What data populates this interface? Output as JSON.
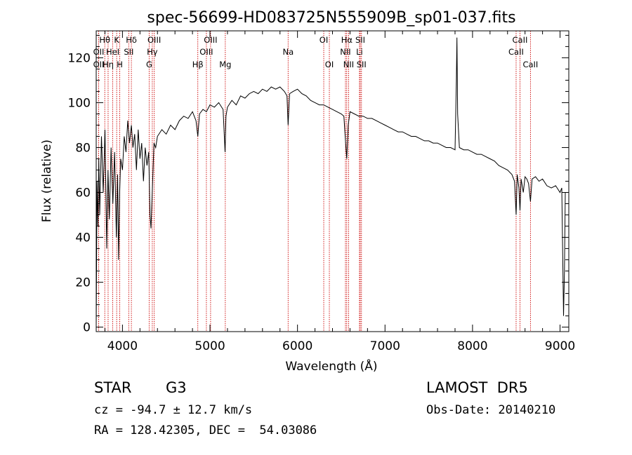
{
  "title": "spec-56699-HD083725N555909B_sp01-037.fits",
  "footer": {
    "object_class": "STAR",
    "subclass": "G3",
    "survey": "LAMOST  DR5",
    "cz": "cz = -94.7 ± 12.7 km/s",
    "obs_date": "Obs-Date: 20140210",
    "coords": "RA = 128.42305, DEC =  54.03086"
  },
  "chart_data": {
    "type": "line",
    "title": "spec-56699-HD083725N555909B_sp01-037.fits",
    "xlabel": "Wavelength (Å)",
    "ylabel": "Flux (relative)",
    "xlim": [
      3700,
      9100
    ],
    "ylim": [
      -2,
      132
    ],
    "xticks": [
      4000,
      5000,
      6000,
      7000,
      8000,
      9000
    ],
    "yticks": [
      0,
      20,
      40,
      60,
      80,
      100,
      120
    ],
    "line_color": "#000000",
    "marker_color": "#cc0000",
    "spectrum": {
      "x": [
        3700,
        3710,
        3720,
        3730,
        3740,
        3760,
        3780,
        3800,
        3820,
        3835,
        3850,
        3870,
        3890,
        3910,
        3930,
        3945,
        3955,
        3968,
        3980,
        4000,
        4020,
        4040,
        4060,
        4080,
        4102,
        4120,
        4140,
        4160,
        4180,
        4200,
        4220,
        4240,
        4260,
        4280,
        4300,
        4315,
        4326,
        4340,
        4360,
        4380,
        4400,
        4450,
        4500,
        4550,
        4600,
        4650,
        4700,
        4750,
        4800,
        4840,
        4861,
        4880,
        4920,
        4960,
        5000,
        5050,
        5100,
        5150,
        5172,
        5183,
        5200,
        5250,
        5300,
        5350,
        5400,
        5450,
        5500,
        5550,
        5600,
        5650,
        5700,
        5750,
        5800,
        5850,
        5880,
        5893,
        5910,
        5950,
        6000,
        6050,
        6100,
        6150,
        6200,
        6250,
        6300,
        6350,
        6400,
        6450,
        6500,
        6530,
        6550,
        6563,
        6580,
        6600,
        6650,
        6700,
        6750,
        6800,
        6850,
        6900,
        6950,
        7000,
        7050,
        7100,
        7150,
        7200,
        7250,
        7300,
        7350,
        7400,
        7450,
        7500,
        7550,
        7600,
        7650,
        7700,
        7750,
        7800,
        7815,
        7822,
        7830,
        7850,
        7900,
        7950,
        8000,
        8050,
        8100,
        8150,
        8200,
        8250,
        8300,
        8350,
        8400,
        8450,
        8480,
        8498,
        8510,
        8530,
        8542,
        8555,
        8580,
        8600,
        8620,
        8640,
        8662,
        8680,
        8720,
        8760,
        8800,
        8850,
        8900,
        8950,
        9000,
        9020,
        9040,
        9050,
        9060
      ],
      "y": [
        0,
        65,
        45,
        75,
        50,
        85,
        60,
        88,
        35,
        70,
        48,
        80,
        55,
        78,
        40,
        68,
        30,
        60,
        75,
        70,
        85,
        78,
        92,
        82,
        90,
        80,
        86,
        70,
        88,
        75,
        82,
        65,
        80,
        72,
        78,
        50,
        44,
        60,
        82,
        80,
        85,
        88,
        86,
        90,
        88,
        92,
        94,
        93,
        96,
        92,
        85,
        95,
        97,
        96,
        99,
        98,
        100,
        97,
        78,
        94,
        98,
        101,
        99,
        103,
        102,
        104,
        105,
        104,
        106,
        105,
        107,
        106,
        107,
        105,
        103,
        90,
        104,
        105,
        106,
        104,
        103,
        101,
        100,
        99,
        99,
        98,
        97,
        96,
        95,
        94,
        82,
        75,
        90,
        96,
        95,
        94,
        94,
        93,
        93,
        92,
        91,
        90,
        89,
        88,
        87,
        87,
        86,
        85,
        85,
        84,
        83,
        83,
        82,
        82,
        81,
        80,
        80,
        79,
        110,
        129,
        95,
        80,
        79,
        79,
        78,
        77,
        77,
        76,
        75,
        74,
        72,
        71,
        70,
        68,
        65,
        50,
        68,
        62,
        52,
        66,
        60,
        67,
        66,
        64,
        56,
        66,
        67,
        65,
        66,
        63,
        62,
        63,
        60,
        62,
        5,
        25,
        60
      ]
    },
    "lines": [
      {
        "label": "Hθ",
        "x": 3798,
        "row": 0
      },
      {
        "label": "OII",
        "x": 3728,
        "row": 1
      },
      {
        "label": "OII",
        "x": 3728,
        "row": 2
      },
      {
        "label": "Hη",
        "x": 3836,
        "row": 2
      },
      {
        "label": "K",
        "x": 3934,
        "row": 0
      },
      {
        "label": "HeI",
        "x": 3889,
        "row": 1
      },
      {
        "label": "H",
        "x": 3969,
        "row": 2
      },
      {
        "label": "Hδ",
        "x": 4102,
        "row": 0
      },
      {
        "label": "SII",
        "x": 4072,
        "row": 1
      },
      {
        "label": "OIII",
        "x": 4363,
        "row": 0
      },
      {
        "label": "Hγ",
        "x": 4341,
        "row": 1
      },
      {
        "label": "G",
        "x": 4305,
        "row": 2
      },
      {
        "label": "OIII",
        "x": 5007,
        "row": 0
      },
      {
        "label": "OIII",
        "x": 4959,
        "row": 1
      },
      {
        "label": "Hβ",
        "x": 4861,
        "row": 2
      },
      {
        "label": "Mg",
        "x": 5175,
        "row": 2
      },
      {
        "label": "Na",
        "x": 5893,
        "row": 1
      },
      {
        "label": "OI",
        "x": 6300,
        "row": 0
      },
      {
        "label": "OI",
        "x": 6364,
        "row": 2
      },
      {
        "label": "Hα",
        "x": 6563,
        "row": 0
      },
      {
        "label": "NII",
        "x": 6548,
        "row": 1
      },
      {
        "label": "NII",
        "x": 6584,
        "row": 2
      },
      {
        "label": "SII",
        "x": 6717,
        "row": 0
      },
      {
        "label": "Li",
        "x": 6708,
        "row": 1
      },
      {
        "label": "SII",
        "x": 6731,
        "row": 2
      },
      {
        "label": "CaII",
        "x": 8542,
        "row": 0
      },
      {
        "label": "CaII",
        "x": 8498,
        "row": 1
      },
      {
        "label": "CaII",
        "x": 8662,
        "row": 2
      }
    ]
  }
}
